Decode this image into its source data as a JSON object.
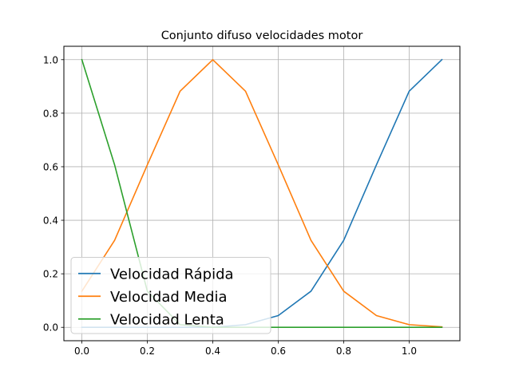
{
  "chart_data": {
    "type": "line",
    "title": "Conjunto difuso velocidades motor",
    "xlabel": "",
    "ylabel": "",
    "xlim": [
      -0.055,
      1.155
    ],
    "ylim": [
      -0.05,
      1.05
    ],
    "xticks": [
      0.0,
      0.2,
      0.4,
      0.6,
      0.8,
      1.0
    ],
    "xtick_labels": [
      "0.0",
      "0.2",
      "0.4",
      "0.6",
      "0.8",
      "1.0"
    ],
    "yticks": [
      0.0,
      0.2,
      0.4,
      0.6,
      0.8,
      1.0
    ],
    "ytick_labels": [
      "0.0",
      "0.2",
      "0.4",
      "0.6",
      "0.8",
      "1.0"
    ],
    "grid": true,
    "legend_position": "lower-left",
    "x": [
      0.0,
      0.1,
      0.2,
      0.3,
      0.4,
      0.5,
      0.6,
      0.7,
      0.8,
      0.9,
      1.0,
      1.1
    ],
    "series": [
      {
        "name": "Velocidad Rápida",
        "color": "#1f77b4",
        "values": [
          0.0,
          0.0,
          0.0,
          0.0,
          0.0,
          0.01,
          0.044,
          0.135,
          0.325,
          0.607,
          0.882,
          1.0
        ]
      },
      {
        "name": "Velocidad Media",
        "color": "#ff7f0e",
        "values": [
          0.135,
          0.325,
          0.607,
          0.882,
          1.0,
          0.882,
          0.607,
          0.325,
          0.135,
          0.044,
          0.01,
          0.002
        ]
      },
      {
        "name": "Velocidad Lenta",
        "color": "#2ca02c",
        "values": [
          1.0,
          0.607,
          0.135,
          0.01,
          0.0,
          0.0,
          0.0,
          0.0,
          0.0,
          0.0,
          0.0,
          0.0
        ]
      }
    ]
  }
}
